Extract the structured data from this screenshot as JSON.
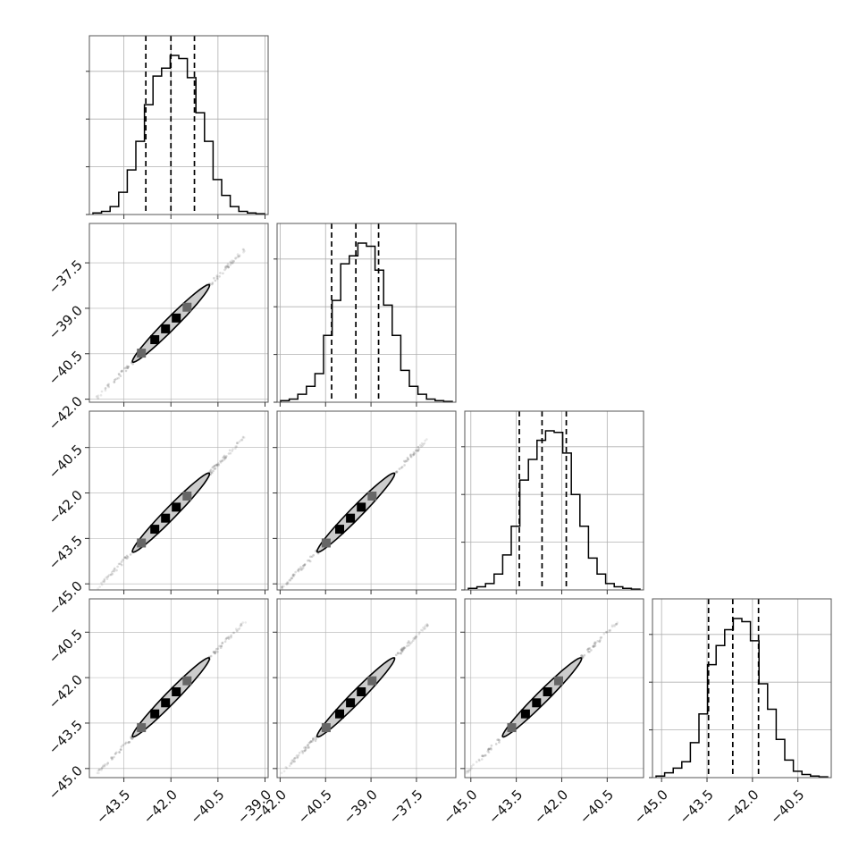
{
  "chart_data": {
    "type": "corner",
    "n_params": 4,
    "grid": true,
    "axis_ticks": [
      [
        -43.5,
        -42.0,
        -40.5,
        -39.0
      ],
      [
        -42.0,
        -40.5,
        -39.0,
        -37.5
      ],
      [
        -45.0,
        -43.5,
        -42.0,
        -40.5
      ],
      [
        -45.0,
        -43.5,
        -42.0,
        -40.5
      ]
    ],
    "axis_tick_labels": [
      [
        "−43.5",
        "−42.0",
        "−40.5",
        "−39.0"
      ],
      [
        "−42.0",
        "−40.5",
        "−39.0",
        "−37.5"
      ],
      [
        "−45.0",
        "−43.5",
        "−42.0",
        "−40.5"
      ],
      [
        "−45.0",
        "−43.5",
        "−42.0",
        "−40.5"
      ]
    ],
    "axis_ranges": [
      [
        -44.6,
        -38.9
      ],
      [
        -42.1,
        -36.2
      ],
      [
        -45.2,
        -39.3
      ],
      [
        -45.3,
        -39.4
      ]
    ],
    "marginals": [
      {
        "param": 0,
        "quantiles": [
          -42.8,
          -42.0,
          -41.25
        ],
        "bin_heights": [
          0.01,
          0.02,
          0.05,
          0.14,
          0.28,
          0.46,
          0.69,
          0.87,
          0.92,
          1.0,
          0.98,
          0.86,
          0.64,
          0.46,
          0.22,
          0.12,
          0.05,
          0.02,
          0.01,
          0.005
        ]
      },
      {
        "param": 1,
        "quantiles": [
          -40.3,
          -39.5,
          -38.75
        ],
        "bin_heights": [
          0.01,
          0.02,
          0.05,
          0.1,
          0.18,
          0.42,
          0.64,
          0.87,
          0.92,
          1.0,
          0.98,
          0.83,
          0.61,
          0.42,
          0.2,
          0.1,
          0.05,
          0.02,
          0.01,
          0.005
        ]
      },
      {
        "param": 2,
        "quantiles": [
          -43.4,
          -42.65,
          -41.85
        ],
        "bin_heights": [
          0.01,
          0.02,
          0.04,
          0.1,
          0.22,
          0.4,
          0.69,
          0.82,
          0.94,
          1.0,
          0.99,
          0.86,
          0.6,
          0.4,
          0.2,
          0.1,
          0.04,
          0.02,
          0.01,
          0.005
        ]
      },
      {
        "param": 3,
        "quantiles": [
          -43.45,
          -42.65,
          -41.8
        ],
        "bin_heights": [
          0.01,
          0.03,
          0.06,
          0.1,
          0.22,
          0.4,
          0.71,
          0.83,
          0.93,
          1.0,
          0.98,
          0.86,
          0.59,
          0.43,
          0.24,
          0.11,
          0.04,
          0.02,
          0.01,
          0.005
        ]
      }
    ],
    "joint_2d": [
      {
        "x_param": 0,
        "y_param": 1,
        "x_range": [
          -44.0,
          -39.2
        ],
        "y_range": [
          -41.5,
          -36.5
        ],
        "core": [
          -42.0,
          -39.5
        ]
      },
      {
        "x_param": 0,
        "y_param": 2,
        "x_range": [
          -44.0,
          -39.2
        ],
        "y_range": [
          -45.0,
          -39.9
        ],
        "core": [
          -42.0,
          -42.65
        ]
      },
      {
        "x_param": 1,
        "y_param": 2,
        "x_range": [
          -41.5,
          -36.5
        ],
        "y_range": [
          -45.0,
          -39.9
        ],
        "core": [
          -39.5,
          -42.65
        ]
      },
      {
        "x_param": 0,
        "y_param": 3,
        "x_range": [
          -44.0,
          -39.2
        ],
        "y_range": [
          -45.0,
          -39.9
        ],
        "core": [
          -42.0,
          -42.65
        ]
      },
      {
        "x_param": 1,
        "y_param": 3,
        "x_range": [
          -41.5,
          -36.5
        ],
        "y_range": [
          -45.0,
          -39.9
        ],
        "core": [
          -39.5,
          -42.65
        ]
      },
      {
        "x_param": 2,
        "y_param": 3,
        "x_range": [
          -45.0,
          -39.9
        ],
        "y_range": [
          -45.0,
          -39.9
        ],
        "core": [
          -42.65,
          -42.65
        ]
      }
    ],
    "colors": {
      "axis": "#555555",
      "grid": "#b0b0b0",
      "hist": "#000000",
      "quantile": "#000000",
      "scatter": "#777777",
      "contour_fill": "#cccccc",
      "contour_line": "#000000",
      "density_dark": "#000000",
      "density_mid": "#666666"
    }
  }
}
